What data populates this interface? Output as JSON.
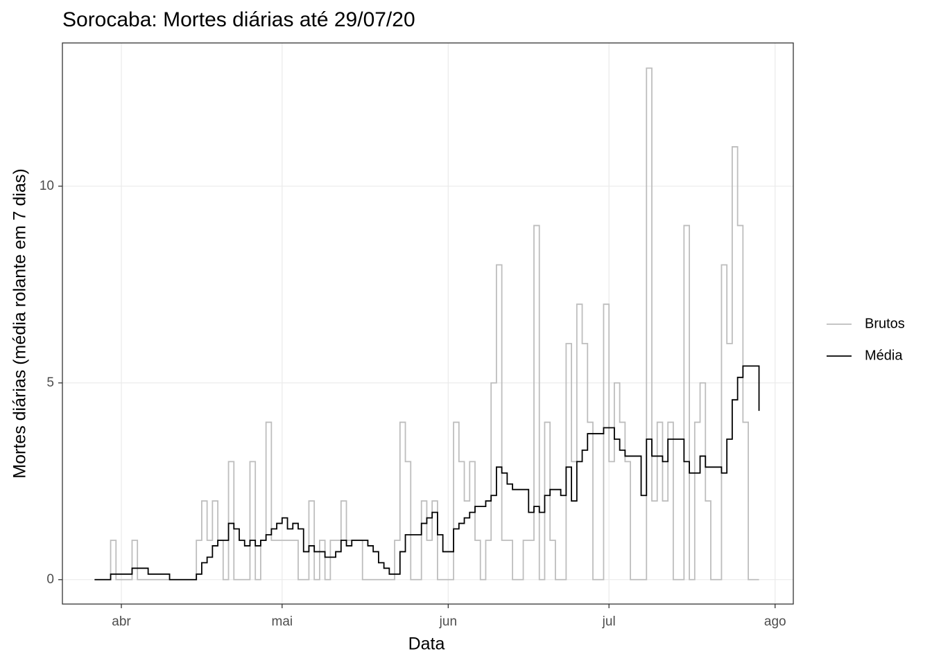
{
  "chart_data": {
    "type": "step",
    "title": "Sorocaba: Mortes diárias até 29/07/20",
    "xlabel": "Data",
    "ylabel": "Mortes diárias (média rolante em 7 dias)",
    "x": [
      87,
      88,
      89,
      90,
      91,
      92,
      93,
      94,
      95,
      96,
      97,
      98,
      99,
      100,
      101,
      102,
      103,
      104,
      105,
      106,
      107,
      108,
      109,
      110,
      111,
      112,
      113,
      114,
      115,
      116,
      117,
      118,
      119,
      120,
      121,
      122,
      123,
      124,
      125,
      126,
      127,
      128,
      129,
      130,
      131,
      132,
      133,
      134,
      135,
      136,
      137,
      138,
      139,
      140,
      141,
      142,
      143,
      144,
      145,
      146,
      147,
      148,
      149,
      150,
      151,
      152,
      153,
      154,
      155,
      156,
      157,
      158,
      159,
      160,
      161,
      162,
      163,
      164,
      165,
      166,
      167,
      168,
      169,
      170,
      171,
      172,
      173,
      174,
      175,
      176,
      177,
      178,
      179,
      180,
      181,
      182,
      183,
      184,
      185,
      186,
      187,
      188,
      189,
      190,
      191,
      192,
      193,
      194,
      195,
      196,
      197,
      198,
      199,
      200,
      201,
      202,
      203,
      204,
      205,
      206,
      207,
      208,
      209,
      210,
      211
    ],
    "series": [
      {
        "name": "Brutos",
        "color": "#bdbdbd",
        "values": [
          0,
          0,
          0,
          1,
          0,
          0,
          0,
          1,
          0,
          0,
          0,
          0,
          0,
          0,
          0,
          0,
          0,
          0,
          0,
          1,
          2,
          1,
          2,
          1,
          0,
          3,
          0,
          0,
          0,
          3,
          0,
          1,
          4,
          1,
          1,
          1,
          1,
          1,
          0,
          0,
          2,
          0,
          1,
          0,
          1,
          1,
          2,
          1,
          1,
          1,
          0,
          0,
          0,
          0,
          0,
          0,
          1,
          4,
          3,
          0,
          0,
          2,
          1,
          2,
          0,
          0,
          0,
          4,
          3,
          2,
          3,
          1,
          0,
          1,
          5,
          8,
          1,
          1,
          0,
          0,
          1,
          1,
          9,
          0,
          4,
          1,
          0,
          0,
          6,
          3,
          7,
          6,
          4,
          0,
          0,
          7,
          3,
          5,
          4,
          3,
          0,
          0,
          0,
          13,
          2,
          4,
          2,
          4,
          0,
          0,
          9,
          0,
          4,
          5,
          2,
          0,
          0,
          8,
          6,
          11,
          9,
          4,
          0,
          0,
          0
        ]
      },
      {
        "name": "Média",
        "color": "#000000",
        "values": [
          0,
          0,
          0,
          0.14,
          0.14,
          0.14,
          0.14,
          0.29,
          0.29,
          0.29,
          0.14,
          0.14,
          0.14,
          0.14,
          0,
          0,
          0,
          0,
          0,
          0.14,
          0.43,
          0.57,
          0.86,
          1,
          1,
          1.43,
          1.29,
          1,
          0.86,
          1,
          0.86,
          1,
          1.14,
          1.29,
          1.43,
          1.57,
          1.29,
          1.43,
          1.29,
          0.71,
          0.86,
          0.71,
          0.71,
          0.57,
          0.57,
          0.71,
          1,
          0.86,
          1,
          1,
          1,
          0.86,
          0.71,
          0.43,
          0.29,
          0.14,
          0.14,
          0.71,
          1.14,
          1.14,
          1.14,
          1.43,
          1.57,
          1.71,
          1.14,
          0.71,
          0.71,
          1.29,
          1.43,
          1.57,
          1.71,
          1.86,
          1.86,
          2,
          2.14,
          2.86,
          2.71,
          2.43,
          2.29,
          2.29,
          2.29,
          1.71,
          1.86,
          1.71,
          2.14,
          2.29,
          2.29,
          2.14,
          2.86,
          2,
          3,
          3.29,
          3.71,
          3.71,
          3.71,
          3.86,
          3.86,
          3.57,
          3.29,
          3.14,
          3.14,
          3.14,
          2.14,
          3.57,
          3.14,
          3.14,
          3,
          3.57,
          3.57,
          3.57,
          3,
          2.71,
          2.71,
          3.14,
          2.86,
          2.86,
          2.86,
          2.71,
          3.57,
          4.57,
          5.14,
          5.43,
          5.43,
          5.43,
          4.29
        ]
      }
    ],
    "xlim": [
      81,
      217.4
    ],
    "xticks": [
      {
        "value": 92,
        "label": "abr"
      },
      {
        "value": 122,
        "label": "mai"
      },
      {
        "value": 153,
        "label": "jun"
      },
      {
        "value": 183,
        "label": "jul"
      },
      {
        "value": 214,
        "label": "ago"
      }
    ],
    "ylim": [
      -0.62,
      13.64
    ],
    "yticks": [
      0,
      5,
      10
    ],
    "grid": true,
    "legend": "right"
  }
}
